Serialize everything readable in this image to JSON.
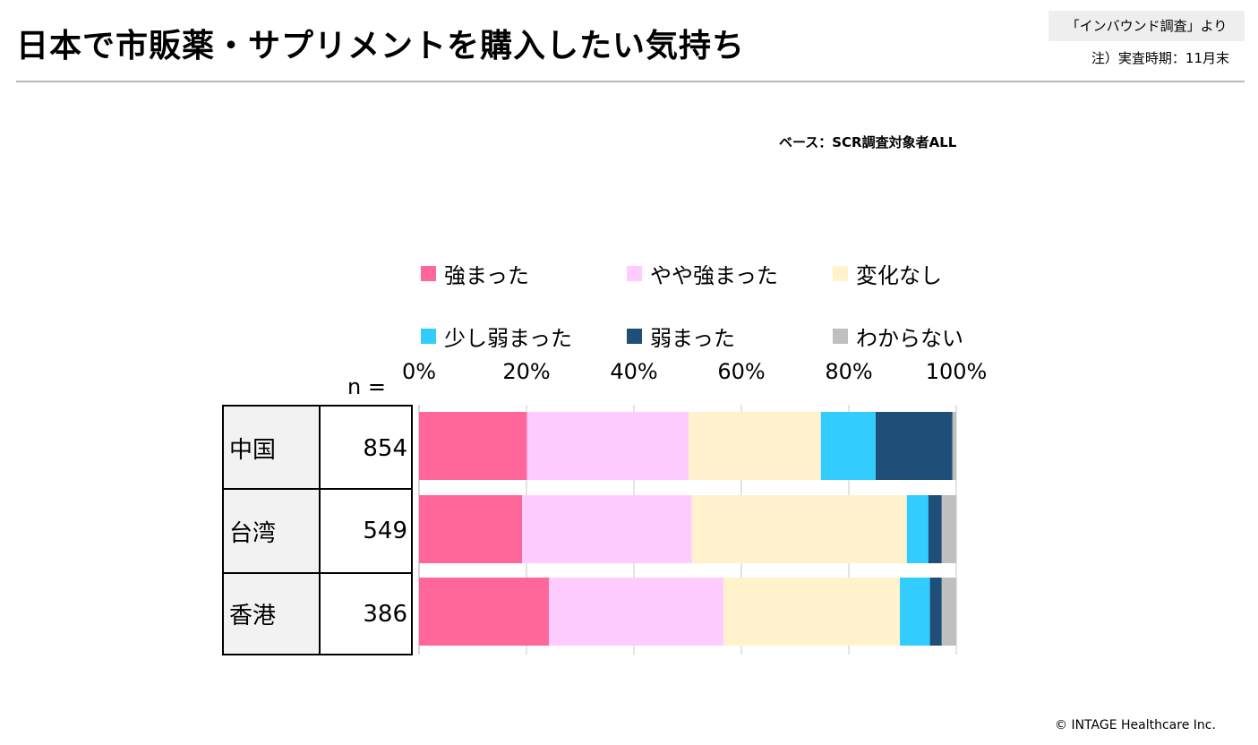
{
  "header": {
    "title": "日本で市販薬・サプリメントを購入したい気持ち",
    "source": "「インバウンド調査」より",
    "note": "注）実査時期：11月末"
  },
  "base_label": "ベース：SCR調査対象者ALL",
  "n_label": "n =",
  "footer": {
    "copyright": "© INTAGE Healthcare Inc."
  },
  "chart_data": {
    "type": "bar",
    "orientation": "horizontal",
    "stacked": true,
    "percent": true,
    "categories": [
      "中国",
      "台湾",
      "香港"
    ],
    "n": [
      "854",
      "549",
      "386"
    ],
    "xlim": [
      0,
      100
    ],
    "xticks": [
      "0%",
      "20%",
      "40%",
      "60%",
      "80%",
      "100%"
    ],
    "grid": true,
    "legend_position": "top",
    "series": [
      {
        "name": "強まった",
        "color": "#ff6699",
        "values": [
          20.1,
          19.2,
          24.2
        ]
      },
      {
        "name": "やや強まった",
        "color": "#ffccff",
        "values": [
          30.1,
          31.6,
          32.5
        ]
      },
      {
        "name": "変化なし",
        "color": "#fff2cc",
        "values": [
          24.6,
          40.0,
          32.8
        ]
      },
      {
        "name": "少し弱まった",
        "color": "#33ccff",
        "values": [
          10.2,
          4.0,
          5.6
        ]
      },
      {
        "name": "弱まった",
        "color": "#1f4e79",
        "values": [
          14.3,
          2.5,
          2.2
        ]
      },
      {
        "name": "わからない",
        "color": "#bfbfbf",
        "values": [
          0.7,
          2.7,
          2.7
        ]
      }
    ]
  }
}
